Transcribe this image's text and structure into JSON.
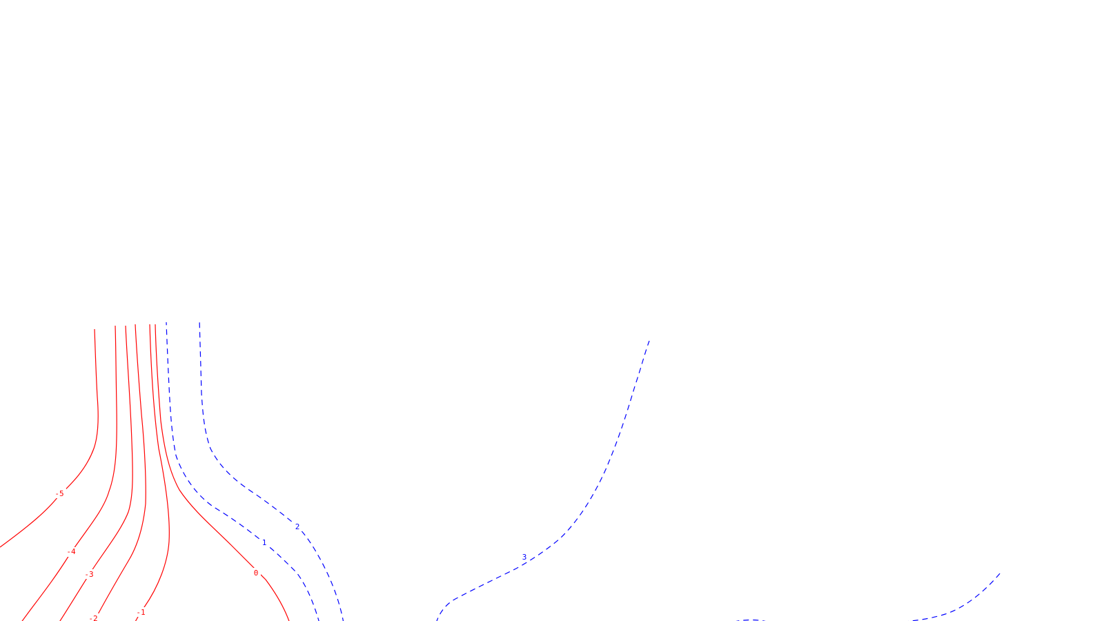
{
  "chart_data": {
    "type": "contour",
    "title": "",
    "xlabel": "",
    "ylabel": "",
    "grid": false,
    "legend": "none",
    "style": {
      "negative_color": "#ff0000",
      "positive_color": "#0000ff",
      "negative_linestyle": "solid",
      "positive_linestyle": "dashed"
    },
    "levels": [
      {
        "value": -5,
        "label": "-5",
        "sign": "negative"
      },
      {
        "value": -4,
        "label": "-4",
        "sign": "negative"
      },
      {
        "value": -3,
        "label": "-3",
        "sign": "negative"
      },
      {
        "value": -2,
        "label": "-2",
        "sign": "negative"
      },
      {
        "value": -1,
        "label": "-1",
        "sign": "negative"
      },
      {
        "value": 0,
        "label": "0",
        "sign": "negative"
      },
      {
        "value": 1,
        "label": "1",
        "sign": "positive"
      },
      {
        "value": 2,
        "label": "2",
        "sign": "positive"
      },
      {
        "value": 3,
        "label": "3",
        "sign": "positive"
      }
    ]
  }
}
